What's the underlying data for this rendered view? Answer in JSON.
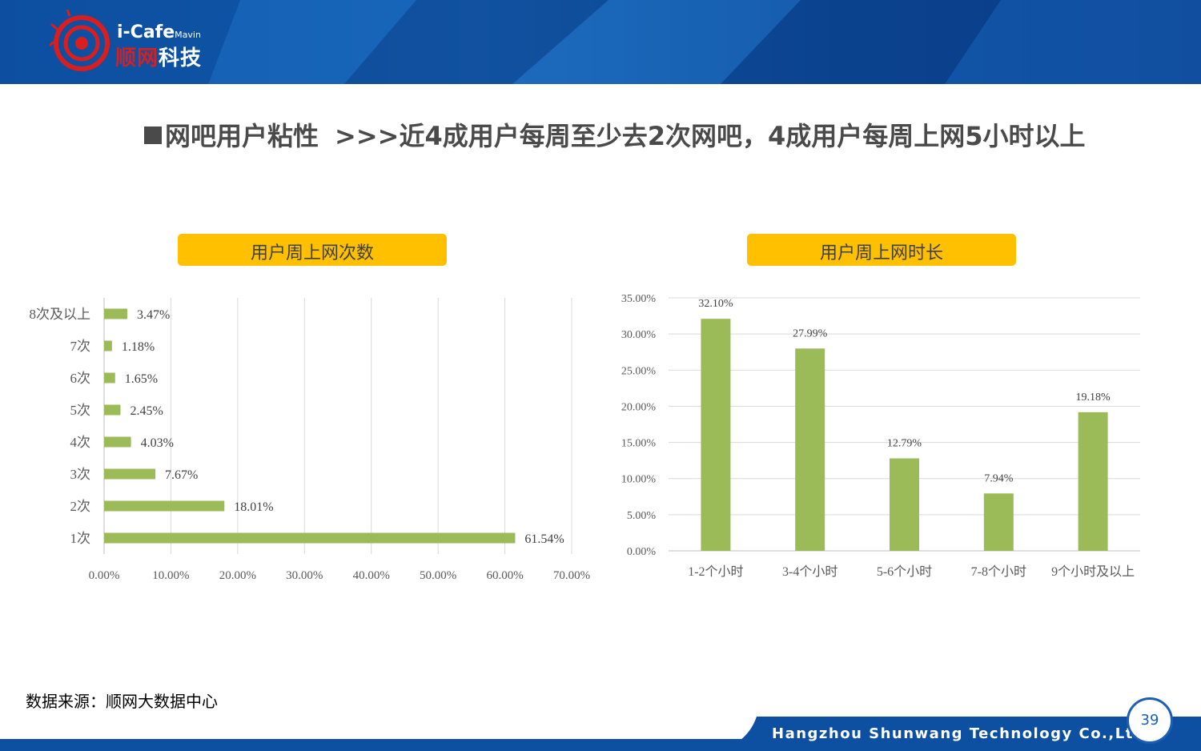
{
  "brand": {
    "name_en": "i-Cafe",
    "name_en_suffix": "Mavin",
    "name_cn_red": "顺网",
    "name_cn_white": "科技",
    "primary_color": "#0d4fa0",
    "accent_color": "#ffc000",
    "bar_color": "#9bbb59"
  },
  "slide": {
    "title_main": "网吧用户粘性",
    "title_sub": ">>>近4成用户每周至少去2次网吧，4成用户每周上网5小时以上",
    "source": "数据来源：顺网大数据中心",
    "company": "Hangzhou Shunwang Technology Co.,Ltd",
    "page_number": "39"
  },
  "chart_data": [
    {
      "type": "bar",
      "orientation": "horizontal",
      "title": "用户周上网次数",
      "categories": [
        "8次及以上",
        "7次",
        "6次",
        "5次",
        "4次",
        "3次",
        "2次",
        "1次"
      ],
      "values": [
        3.47,
        1.18,
        1.65,
        2.45,
        4.03,
        7.67,
        18.01,
        61.54
      ],
      "data_labels": [
        "3.47%",
        "1.18%",
        "1.65%",
        "2.45%",
        "4.03%",
        "7.67%",
        "18.01%",
        "61.54%"
      ],
      "xlim": [
        0,
        70
      ],
      "ticks": [
        "0.00%",
        "10.00%",
        "20.00%",
        "30.00%",
        "40.00%",
        "50.00%",
        "60.00%",
        "70.00%"
      ],
      "grid": true
    },
    {
      "type": "bar",
      "orientation": "vertical",
      "title": "用户周上网时长",
      "categories": [
        "1-2个小时",
        "3-4个小时",
        "5-6个小时",
        "7-8个小时",
        "9个小时及以上"
      ],
      "values": [
        32.1,
        27.99,
        12.79,
        7.94,
        19.18
      ],
      "data_labels": [
        "32.10%",
        "27.99%",
        "12.79%",
        "7.94%",
        "19.18%"
      ],
      "ylim": [
        0,
        35
      ],
      "ticks": [
        "0.00%",
        "5.00%",
        "10.00%",
        "15.00%",
        "20.00%",
        "25.00%",
        "30.00%",
        "35.00%"
      ],
      "grid": true
    }
  ]
}
